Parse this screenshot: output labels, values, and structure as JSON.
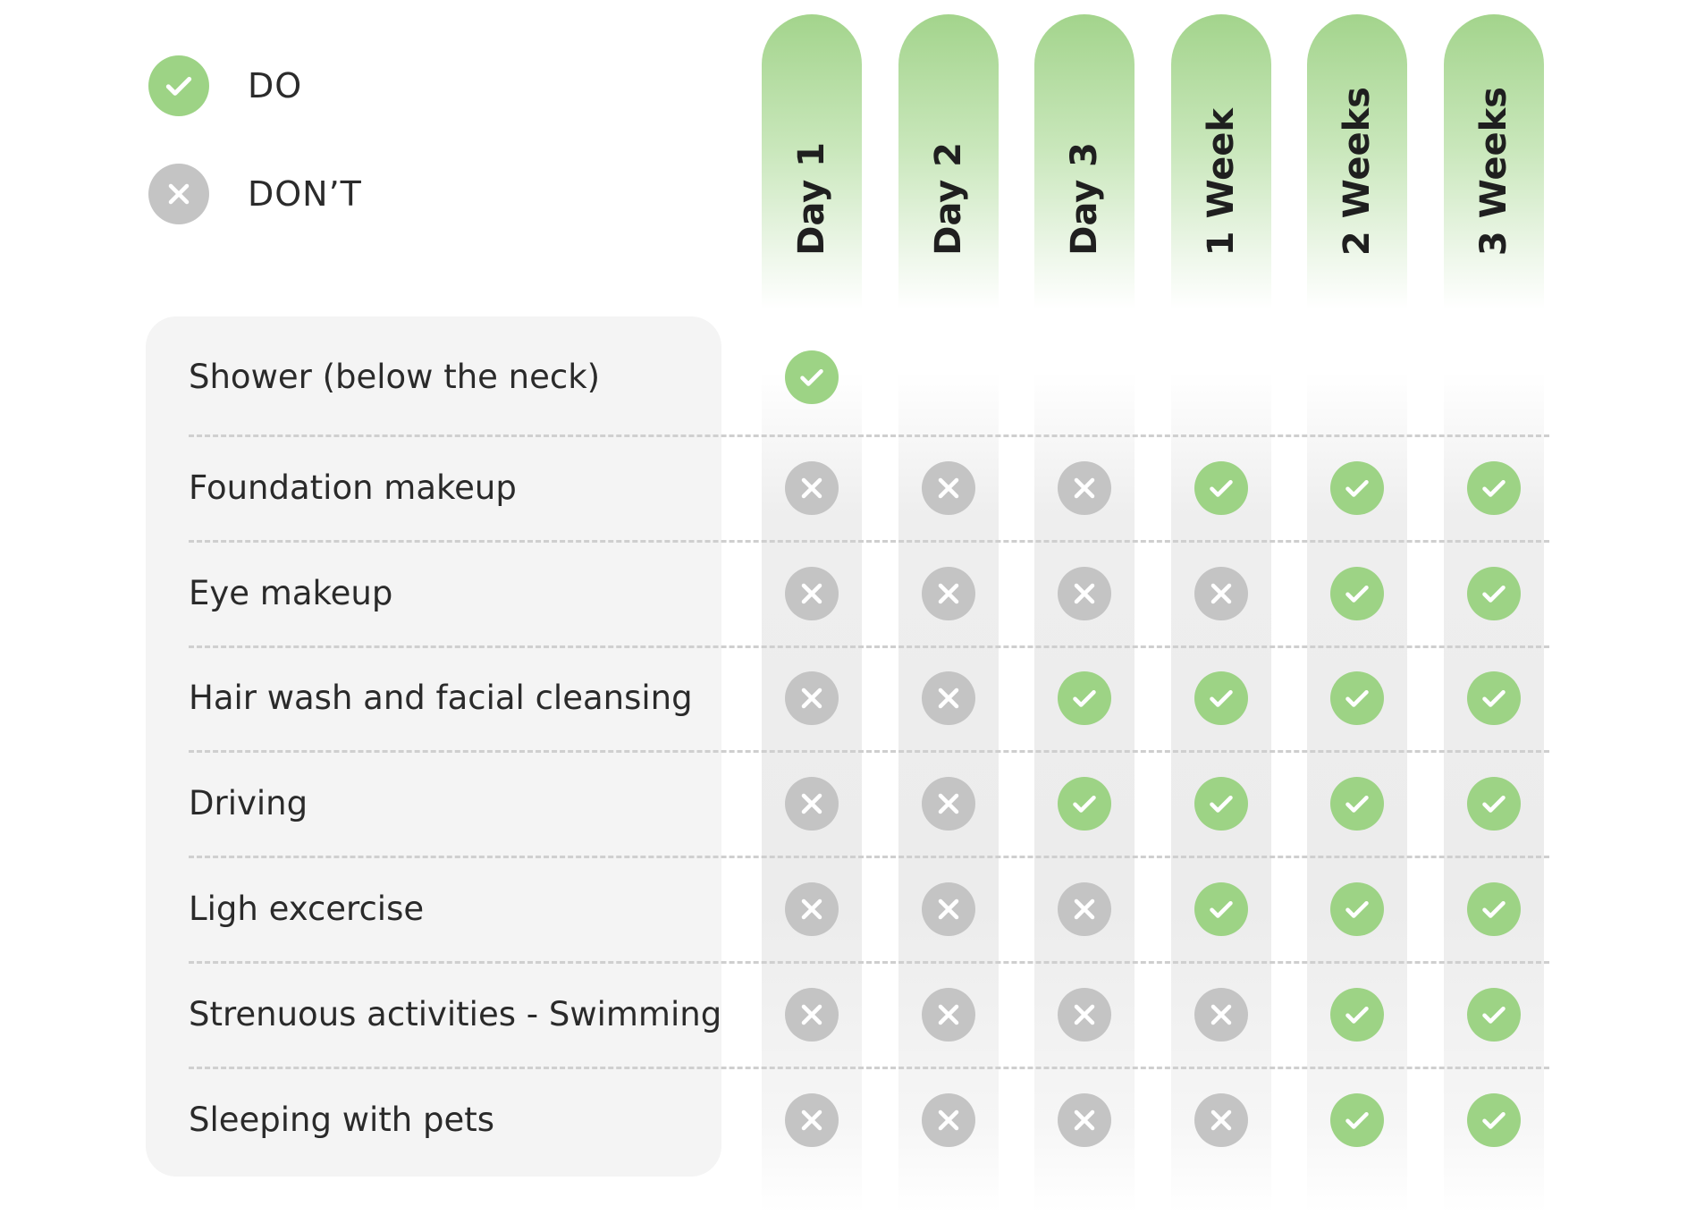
{
  "colors": {
    "do": "#9dd385",
    "dont": "#c4c4c4",
    "panel": "#f4f4f4",
    "header_gradient_top": "#a3d48c"
  },
  "legend": {
    "do": {
      "label": "DO",
      "icon": "check-icon"
    },
    "dont": {
      "label": "DON’T",
      "icon": "cross-icon"
    }
  },
  "columns": [
    "Day 1",
    "Day 2",
    "Day 3",
    "1 Week",
    "2 Weeks",
    "3 Weeks"
  ],
  "rows": [
    {
      "label": "Shower (below the neck)",
      "status": [
        "do",
        null,
        null,
        null,
        null,
        null
      ]
    },
    {
      "label": "Foundation makeup",
      "status": [
        "dont",
        "dont",
        "dont",
        "do",
        "do",
        "do"
      ]
    },
    {
      "label": "Eye makeup",
      "status": [
        "dont",
        "dont",
        "dont",
        "dont",
        "do",
        "do"
      ]
    },
    {
      "label": "Hair wash and facial cleansing",
      "status": [
        "dont",
        "dont",
        "do",
        "do",
        "do",
        "do"
      ]
    },
    {
      "label": "Driving",
      "status": [
        "dont",
        "dont",
        "do",
        "do",
        "do",
        "do"
      ]
    },
    {
      "label": "Ligh excercise",
      "status": [
        "dont",
        "dont",
        "dont",
        "do",
        "do",
        "do"
      ]
    },
    {
      "label": "Strenuous activities - Swimming",
      "status": [
        "dont",
        "dont",
        "dont",
        "dont",
        "do",
        "do"
      ]
    },
    {
      "label": "Sleeping with pets",
      "status": [
        "dont",
        "dont",
        "dont",
        "dont",
        "do",
        "do"
      ]
    }
  ]
}
